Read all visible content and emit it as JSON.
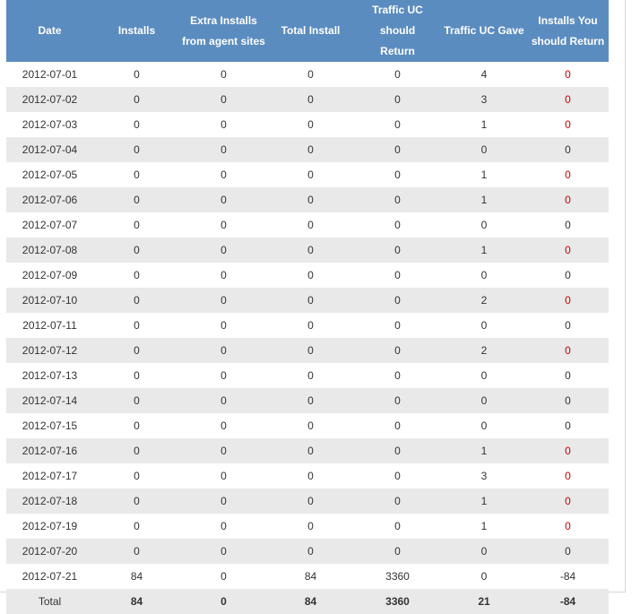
{
  "colors": {
    "header_bg": "#5b8cc0",
    "alt_row": "#e9e9e9",
    "negative_flag": "#cc0000"
  },
  "headers": [
    [
      "Date"
    ],
    [
      "Installs"
    ],
    [
      "Extra Installs",
      "from agent sites"
    ],
    [
      "Total Install"
    ],
    [
      "Traffic UC should",
      "Return"
    ],
    [
      "Traffic UC Gave"
    ],
    [
      "Installs You",
      "should Return"
    ]
  ],
  "rows": [
    [
      "2012-07-01",
      "0",
      "0",
      "0",
      "0",
      "4",
      "0"
    ],
    [
      "2012-07-02",
      "0",
      "0",
      "0",
      "0",
      "3",
      "0"
    ],
    [
      "2012-07-03",
      "0",
      "0",
      "0",
      "0",
      "1",
      "0"
    ],
    [
      "2012-07-04",
      "0",
      "0",
      "0",
      "0",
      "0",
      "0"
    ],
    [
      "2012-07-05",
      "0",
      "0",
      "0",
      "0",
      "1",
      "0"
    ],
    [
      "2012-07-06",
      "0",
      "0",
      "0",
      "0",
      "1",
      "0"
    ],
    [
      "2012-07-07",
      "0",
      "0",
      "0",
      "0",
      "0",
      "0"
    ],
    [
      "2012-07-08",
      "0",
      "0",
      "0",
      "0",
      "1",
      "0"
    ],
    [
      "2012-07-09",
      "0",
      "0",
      "0",
      "0",
      "0",
      "0"
    ],
    [
      "2012-07-10",
      "0",
      "0",
      "0",
      "0",
      "2",
      "0"
    ],
    [
      "2012-07-11",
      "0",
      "0",
      "0",
      "0",
      "0",
      "0"
    ],
    [
      "2012-07-12",
      "0",
      "0",
      "0",
      "0",
      "2",
      "0"
    ],
    [
      "2012-07-13",
      "0",
      "0",
      "0",
      "0",
      "0",
      "0"
    ],
    [
      "2012-07-14",
      "0",
      "0",
      "0",
      "0",
      "0",
      "0"
    ],
    [
      "2012-07-15",
      "0",
      "0",
      "0",
      "0",
      "0",
      "0"
    ],
    [
      "2012-07-16",
      "0",
      "0",
      "0",
      "0",
      "1",
      "0"
    ],
    [
      "2012-07-17",
      "0",
      "0",
      "0",
      "0",
      "3",
      "0"
    ],
    [
      "2012-07-18",
      "0",
      "0",
      "0",
      "0",
      "1",
      "0"
    ],
    [
      "2012-07-19",
      "0",
      "0",
      "0",
      "0",
      "1",
      "0"
    ],
    [
      "2012-07-20",
      "0",
      "0",
      "0",
      "0",
      "0",
      "0"
    ],
    [
      "2012-07-21",
      "84",
      "0",
      "84",
      "3360",
      "0",
      "-84"
    ]
  ],
  "red_rows": [
    0,
    1,
    2,
    4,
    5,
    7,
    9,
    11,
    15,
    16,
    17,
    18
  ],
  "total": [
    "Total",
    "84",
    "0",
    "84",
    "3360",
    "21",
    "-84"
  ]
}
